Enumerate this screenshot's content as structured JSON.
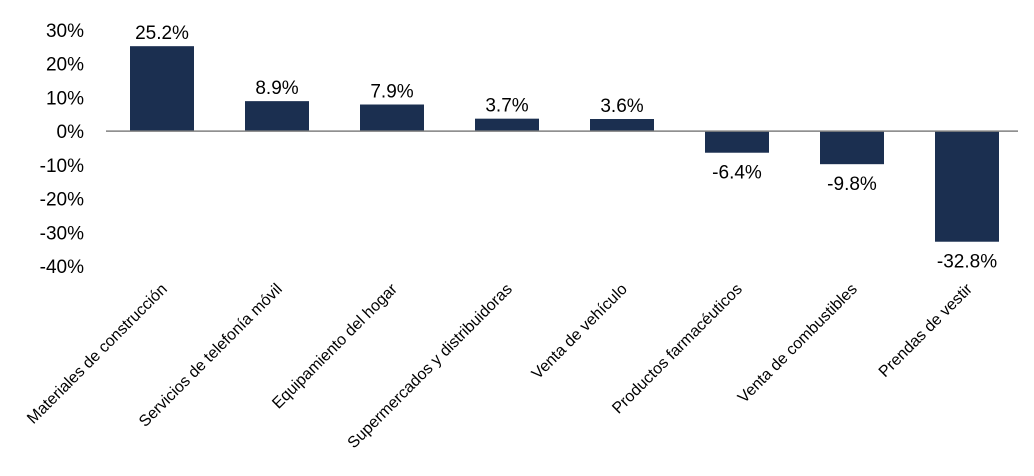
{
  "chart_data": {
    "type": "bar",
    "categories": [
      "Materiales de construcción",
      "Servicios de telefonía móvil",
      "Equipamiento del hogar",
      "Supermercados y distribuidoras",
      "Venta de vehículo",
      "Productos farmacéuticos",
      "Venta de combustibles",
      "Prendas de vestir"
    ],
    "values": [
      25.2,
      8.9,
      7.9,
      3.7,
      3.6,
      -6.4,
      -9.8,
      -32.8
    ],
    "data_labels": [
      "25.2%",
      "8.9%",
      "7.9%",
      "3.7%",
      "3.6%",
      "-6.4%",
      "-9.8%",
      "-32.8%"
    ],
    "y_ticks": [
      30,
      20,
      10,
      0,
      -10,
      -20,
      -30,
      -40
    ],
    "y_tick_labels": [
      "30%",
      "20%",
      "10%",
      "0%",
      "-10%",
      "-20%",
      "-30%",
      "-40%"
    ],
    "ylim": [
      -40,
      30
    ],
    "grid": false,
    "legend": "none",
    "bar_color": "#1b2f50",
    "axis_color": "#808080"
  }
}
